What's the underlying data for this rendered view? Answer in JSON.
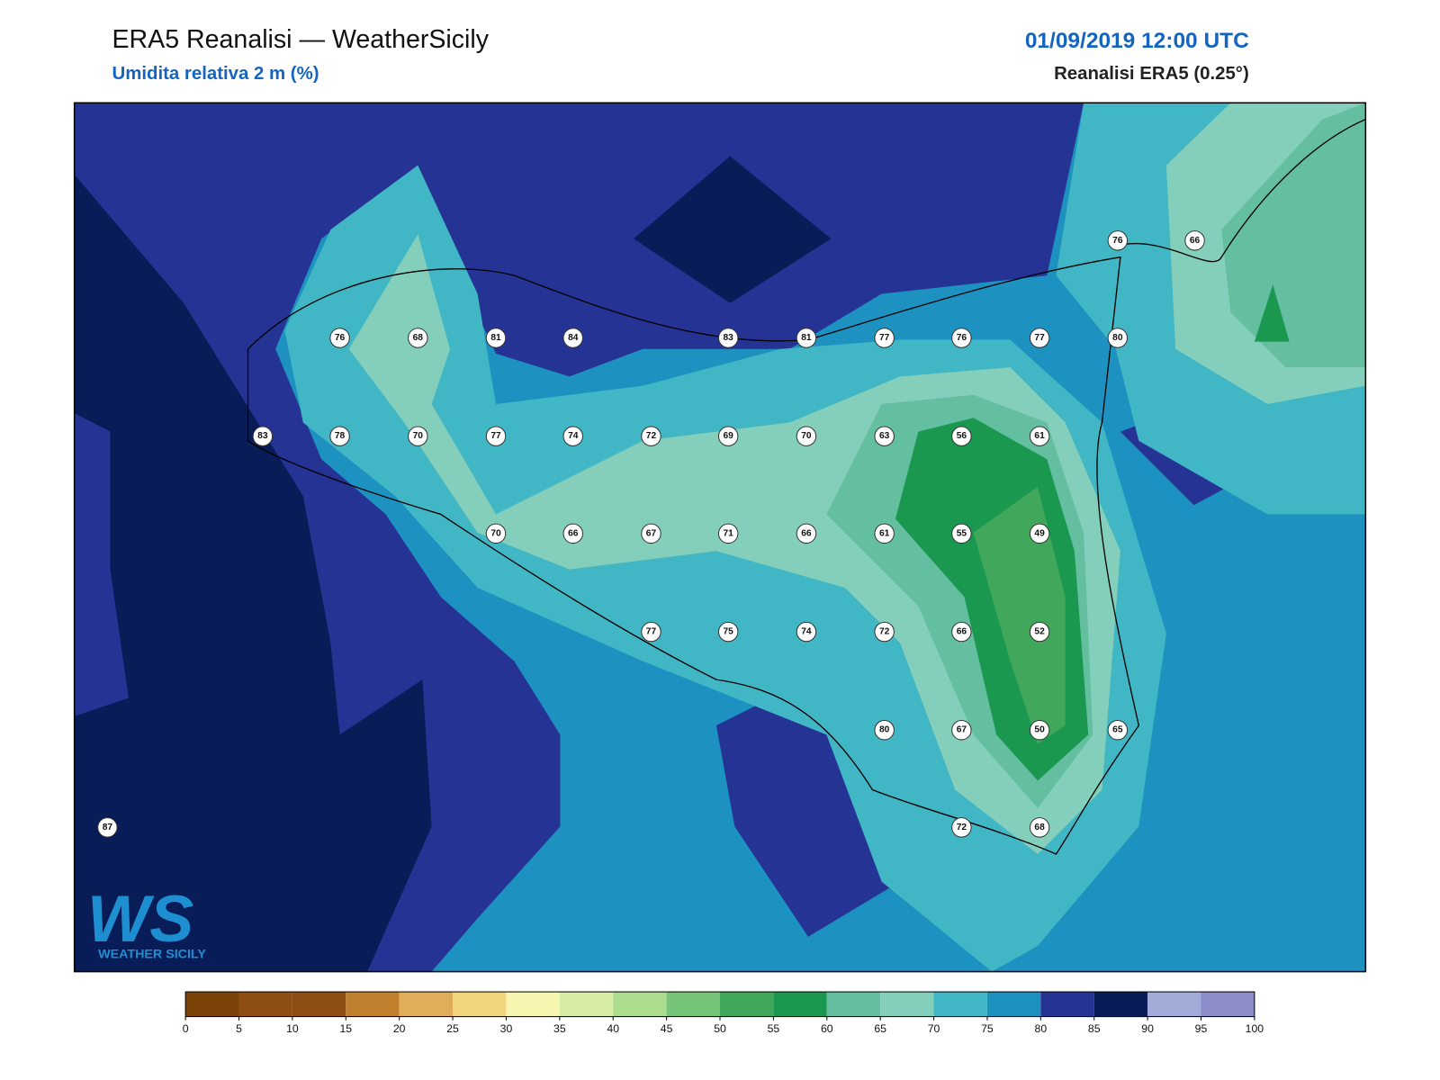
{
  "header": {
    "title": "ERA5 Reanalisi — WeatherSicily",
    "subtitle": "Umidita relativa 2 m (%)",
    "datetime": "01/09/2019 12:00 UTC",
    "source": "Reanalisi ERA5 (0.25°)"
  },
  "logo": {
    "mark": "WS",
    "name": "WEATHER SICILY"
  },
  "stations": [
    76,
    66,
    76,
    68,
    81,
    84,
    83,
    81,
    77,
    76,
    77,
    80,
    83,
    78,
    70,
    77,
    74,
    72,
    69,
    70,
    63,
    56,
    61,
    70,
    66,
    67,
    71,
    66,
    61,
    55,
    49,
    77,
    75,
    74,
    72,
    66,
    52,
    80,
    67,
    50,
    65,
    87,
    72,
    68
  ],
  "colorbar": {
    "ticks": [
      0,
      5,
      10,
      15,
      20,
      25,
      30,
      35,
      40,
      45,
      50,
      55,
      60,
      65,
      70,
      75,
      80,
      85,
      90,
      95,
      100
    ],
    "colors": [
      "#7b4308",
      "#8f4f12",
      "#8f4f12",
      "#c0802e",
      "#e0ae5a",
      "#f0d57d",
      "#f5f5b0",
      "#d7eca5",
      "#acdc8d",
      "#74c376",
      "#41a75b",
      "#1a9850",
      "#63bfa0",
      "#84cfbb",
      "#41b6c4",
      "#1d91c0",
      "#253494",
      "#081d58",
      "#a3acd9",
      "#8b8cc8"
    ]
  }
}
